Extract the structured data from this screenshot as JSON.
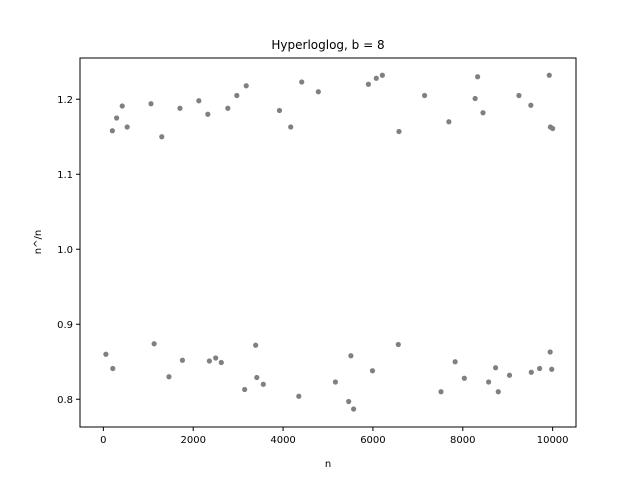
{
  "chart_data": {
    "type": "scatter",
    "title": "Hyperloglog, b = 8",
    "xlabel": "n",
    "ylabel": "n^/n",
    "xlim": [
      -520,
      10520
    ],
    "ylim": [
      0.763,
      1.255
    ],
    "xticks": [
      0,
      2000,
      4000,
      6000,
      8000,
      10000
    ],
    "xtick_labels": [
      "0",
      "2000",
      "4000",
      "6000",
      "8000",
      "10000"
    ],
    "yticks": [
      0.8,
      0.9,
      1.0,
      1.1,
      1.2
    ],
    "ytick_labels": [
      "0.8",
      "0.9",
      "1.0",
      "1.1",
      "1.2"
    ],
    "grid": false,
    "legend": "none",
    "marker_color": "#808080",
    "series": [
      {
        "points": [
          [
            56,
            0.86
          ],
          [
            210,
            0.841
          ],
          [
            200,
            1.158
          ],
          [
            295,
            1.175
          ],
          [
            420,
            1.191
          ],
          [
            530,
            1.163
          ],
          [
            1060,
            1.194
          ],
          [
            1300,
            1.15
          ],
          [
            1460,
            0.83
          ],
          [
            1705,
            1.188
          ],
          [
            1760,
            0.852
          ],
          [
            2125,
            1.198
          ],
          [
            2325,
            1.18
          ],
          [
            2500,
            0.855
          ],
          [
            2625,
            0.849
          ],
          [
            2770,
            1.188
          ],
          [
            2970,
            1.205
          ],
          [
            3180,
            1.218
          ],
          [
            3145,
            0.813
          ],
          [
            3415,
            0.829
          ],
          [
            3560,
            0.82
          ],
          [
            3920,
            1.185
          ],
          [
            4415,
            1.223
          ],
          [
            4350,
            0.804
          ],
          [
            4785,
            1.21
          ],
          [
            5165,
            0.823
          ],
          [
            5460,
            0.797
          ],
          [
            5570,
            0.787
          ],
          [
            5900,
            1.22
          ],
          [
            5990,
            0.838
          ],
          [
            6075,
            1.228
          ],
          [
            6210,
            1.232
          ],
          [
            7150,
            1.205
          ],
          [
            7515,
            0.81
          ],
          [
            7830,
            0.85
          ],
          [
            8035,
            0.828
          ],
          [
            8275,
            1.201
          ],
          [
            8330,
            1.23
          ],
          [
            8575,
            0.823
          ],
          [
            8790,
            0.81
          ],
          [
            9040,
            0.832
          ],
          [
            9250,
            1.205
          ],
          [
            9515,
            1.192
          ],
          [
            9525,
            0.836
          ],
          [
            9710,
            0.841
          ],
          [
            9925,
            1.232
          ],
          [
            9950,
            1.163
          ],
          [
            10000,
            1.161
          ],
          [
            9945,
            0.863
          ],
          [
            9980,
            0.84
          ],
          [
            3390,
            0.872
          ],
          [
            5510,
            0.858
          ],
          [
            6565,
            0.873
          ],
          [
            8730,
            0.842
          ],
          [
            6580,
            1.157
          ],
          [
            4170,
            1.163
          ],
          [
            7690,
            1.17
          ],
          [
            8450,
            1.182
          ],
          [
            1130,
            0.874
          ],
          [
            2360,
            0.851
          ]
        ]
      }
    ]
  }
}
